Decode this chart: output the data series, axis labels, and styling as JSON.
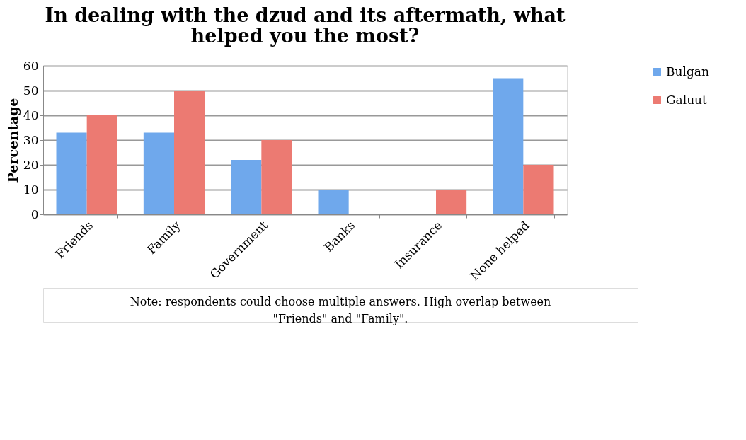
{
  "chart_data": {
    "type": "bar",
    "title": "In dealing with the dzud and its aftermath, what helped you the most?",
    "ylabel": "Percentage",
    "categories": [
      "Friends",
      "Family",
      "Government",
      "Banks",
      "Insurance",
      "None helped"
    ],
    "series": [
      {
        "name": "Bulgan",
        "color": "#6fa8ec",
        "values": [
          33,
          33,
          22,
          10,
          0,
          55
        ]
      },
      {
        "name": "Galuut",
        "color": "#ec7a72",
        "values": [
          40,
          50,
          30,
          0,
          10,
          20
        ]
      }
    ],
    "ylim": [
      0,
      60
    ],
    "yticks": [
      0,
      10,
      20,
      30,
      40,
      50,
      60
    ],
    "grid": "y",
    "legend": "right",
    "annotations": [
      "Note: respondents could choose multiple answers. High overlap between \"Friends\" and \"Family\"."
    ]
  }
}
